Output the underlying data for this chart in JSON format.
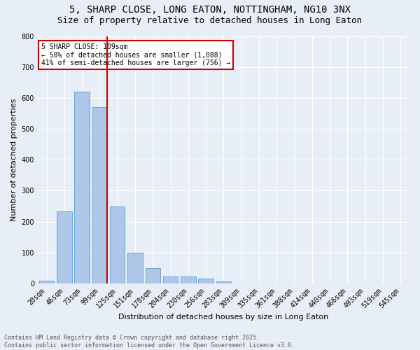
{
  "title": "5, SHARP CLOSE, LONG EATON, NOTTINGHAM, NG10 3NX",
  "subtitle": "Size of property relative to detached houses in Long Eaton",
  "xlabel": "Distribution of detached houses by size in Long Eaton",
  "ylabel": "Number of detached properties",
  "footer_line1": "Contains HM Land Registry data © Crown copyright and database right 2025.",
  "footer_line2": "Contains public sector information licensed under the Open Government Licence v3.0.",
  "bar_labels": [
    "20sqm",
    "46sqm",
    "73sqm",
    "99sqm",
    "125sqm",
    "151sqm",
    "178sqm",
    "204sqm",
    "230sqm",
    "256sqm",
    "283sqm",
    "309sqm",
    "335sqm",
    "361sqm",
    "388sqm",
    "414sqm",
    "440sqm",
    "466sqm",
    "493sqm",
    "519sqm",
    "545sqm"
  ],
  "bar_values": [
    10,
    233,
    620,
    570,
    250,
    100,
    50,
    22,
    22,
    15,
    7,
    0,
    0,
    0,
    0,
    0,
    0,
    0,
    0,
    0,
    0
  ],
  "bar_color": "#aec6e8",
  "bar_edge_color": "#5b9bd5",
  "vline_color": "#cc0000",
  "vline_x_index": 3,
  "annotation_title": "5 SHARP CLOSE: 109sqm",
  "annotation_line1": "← 58% of detached houses are smaller (1,088)",
  "annotation_line2": "41% of semi-detached houses are larger (756) →",
  "annotation_box_edge_color": "#cc0000",
  "ylim": [
    0,
    800
  ],
  "yticks": [
    0,
    100,
    200,
    300,
    400,
    500,
    600,
    700,
    800
  ],
  "bg_color": "#e8eef7",
  "plot_bg_color": "#e8eef7",
  "grid_color": "#ffffff",
  "title_fontsize": 10,
  "subtitle_fontsize": 9,
  "xlabel_fontsize": 8,
  "ylabel_fontsize": 8,
  "tick_fontsize": 7,
  "footer_fontsize": 6,
  "annot_fontsize": 7
}
